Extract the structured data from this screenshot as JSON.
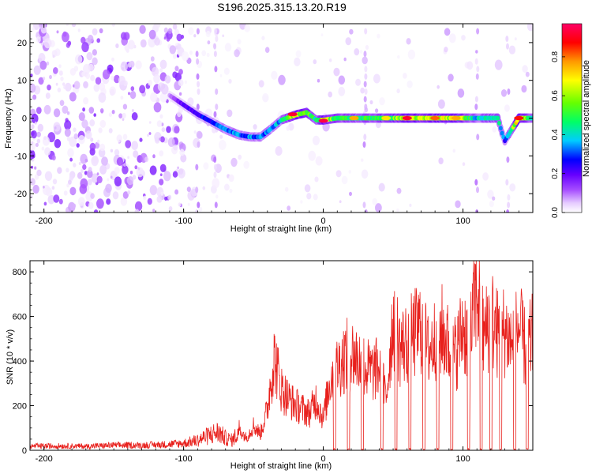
{
  "title": "S196.2025.315.13.20.R19",
  "colors": {
    "snr_line": "#e8201c",
    "axis": "#000000",
    "background": "#ffffff"
  },
  "chart_data": [
    {
      "type": "heatmap",
      "title": "S196.2025.315.13.20.R19",
      "xlabel": "Height of straight line (km)",
      "ylabel": "Frequency (Hz)",
      "xlim": [
        -210,
        150
      ],
      "ylim": [
        -25,
        25
      ],
      "x_ticks": [
        -200,
        -100,
        0,
        100
      ],
      "x_tick_labels": [
        "-200",
        "-100",
        "0",
        "100"
      ],
      "y_ticks": [
        -20,
        -10,
        0,
        10,
        20
      ],
      "y_tick_labels": [
        "-20",
        "-10",
        "0",
        "10",
        "20"
      ],
      "colorbar": {
        "label": "Normalized spectral amplitude",
        "range": [
          0,
          0.97
        ],
        "ticks": [
          0,
          0.2,
          0.4,
          0.6,
          0.8
        ],
        "tick_labels": [
          "0.0",
          "0.2",
          "0.4",
          "0.6",
          "0.8"
        ],
        "colormap": [
          "#ffffff",
          "#e6ccff",
          "#a64dff",
          "#6600ff",
          "#0000ff",
          "#00ccff",
          "#00ff66",
          "#66ff00",
          "#ffff00",
          "#ff9900",
          "#ff0000",
          "#ff0066"
        ]
      },
      "ridge": {
        "x": [
          -110,
          -100,
          -90,
          -80,
          -70,
          -60,
          -52,
          -45,
          -38,
          -30,
          -20,
          -12,
          -5,
          0,
          10,
          20,
          30,
          40,
          50,
          60,
          70,
          80,
          90,
          100,
          110,
          120,
          125,
          128,
          130,
          140,
          150
        ],
        "y": [
          6,
          3.5,
          1,
          -1,
          -3,
          -4.5,
          -5,
          -5,
          -3,
          -0.5,
          0.8,
          1.5,
          -0.5,
          -0.5,
          0,
          0,
          0,
          0,
          0,
          0,
          0,
          0,
          0,
          0,
          0,
          0,
          0,
          -4,
          -6,
          0,
          0
        ],
        "strength": [
          0.15,
          0.3,
          0.35,
          0.4,
          0.45,
          0.45,
          0.45,
          0.45,
          0.45,
          0.5,
          0.75,
          0.7,
          0.55,
          0.8,
          0.6,
          0.6,
          0.6,
          0.65,
          0.65,
          0.8,
          0.7,
          0.75,
          0.75,
          0.7,
          0.5,
          0.6,
          0.55,
          0.45,
          0.4,
          0.85,
          0.5
        ]
      },
      "bright_spots": [
        {
          "x": -22,
          "y": 1,
          "value": 0.95
        },
        {
          "x": 0,
          "y": -0.7,
          "value": 0.97
        },
        {
          "x": 60,
          "y": 0,
          "value": 0.95
        },
        {
          "x": 140,
          "y": 0,
          "value": 0.9
        },
        {
          "x": 22,
          "y": 0,
          "value": 0.8
        },
        {
          "x": 80,
          "y": 0,
          "value": 0.85
        },
        {
          "x": 95,
          "y": 0,
          "value": 0.8
        },
        {
          "x": 45,
          "y": 0,
          "value": 0.75
        }
      ],
      "vertical_streaks": [
        -90,
        -77,
        30,
        110,
        132
      ]
    },
    {
      "type": "line",
      "title": "",
      "xlabel": "Height of straight line (km)",
      "ylabel": "SNR (10 * v/v)",
      "xlim": [
        -210,
        150
      ],
      "ylim": [
        0,
        850
      ],
      "x_ticks": [
        -200,
        -100,
        0,
        100
      ],
      "x_tick_labels": [
        "-200",
        "-100",
        "0",
        "100"
      ],
      "y_ticks": [
        0,
        200,
        400,
        600,
        800
      ],
      "y_tick_labels": [
        "0",
        "200",
        "400",
        "600",
        "800"
      ],
      "series": [
        {
          "name": "SNR",
          "x": [
            -210,
            -190,
            -170,
            -150,
            -130,
            -110,
            -100,
            -90,
            -80,
            -75,
            -70,
            -65,
            -60,
            -55,
            -50,
            -45,
            -40,
            -38,
            -35,
            -30,
            -25,
            -20,
            -15,
            -10,
            -5,
            0,
            5,
            10,
            15,
            20,
            25,
            30,
            35,
            40,
            45,
            50,
            55,
            60,
            65,
            70,
            75,
            80,
            85,
            90,
            95,
            100,
            105,
            108,
            110,
            115,
            120,
            125,
            130,
            135,
            140,
            145,
            150
          ],
          "values": [
            20,
            22,
            20,
            25,
            25,
            30,
            35,
            50,
            80,
            90,
            60,
            50,
            100,
            60,
            120,
            80,
            200,
            320,
            450,
            300,
            250,
            220,
            200,
            180,
            250,
            150,
            350,
            400,
            450,
            470,
            440,
            400,
            380,
            400,
            250,
            650,
            500,
            520,
            560,
            600,
            480,
            540,
            580,
            500,
            470,
            600,
            520,
            700,
            780,
            550,
            650,
            560,
            580,
            520,
            600,
            480,
            550
          ],
          "dropouts": [
            8,
            18,
            28,
            42,
            52,
            62,
            72,
            82,
            92,
            104,
            113,
            120,
            127,
            137,
            146
          ],
          "color": "#e8201c"
        }
      ]
    }
  ]
}
